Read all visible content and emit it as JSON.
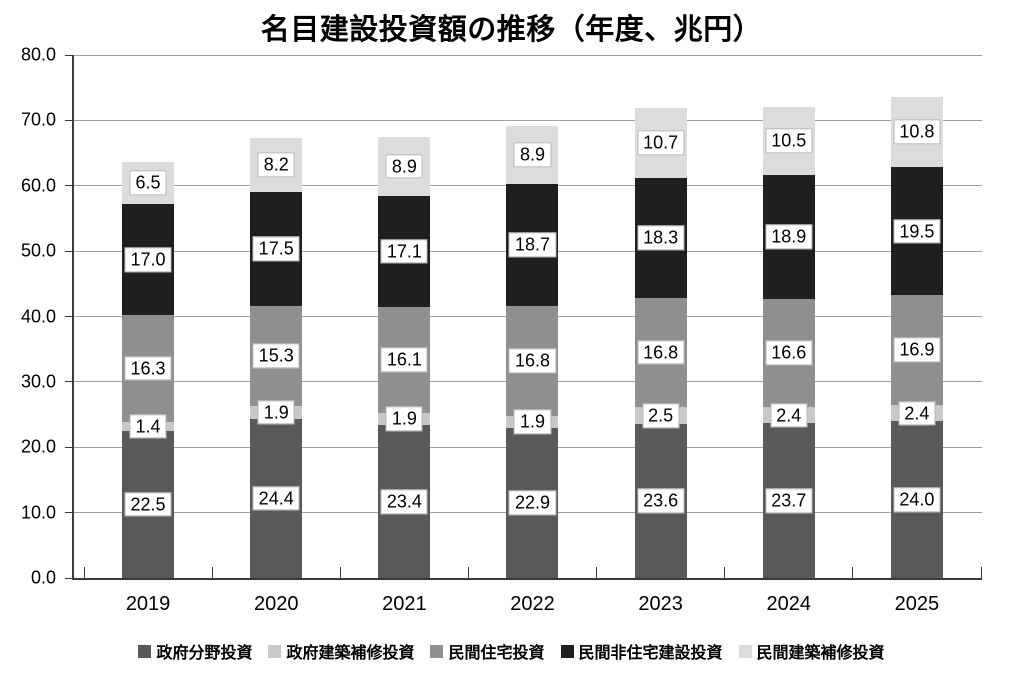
{
  "title": "名目建設投資額の推移（年度、兆円）",
  "chart_data": {
    "type": "bar",
    "stacked": true,
    "title": "名目建設投資額の推移（年度、兆円）",
    "categories": [
      "2019",
      "2020",
      "2021",
      "2022",
      "2023",
      "2024",
      "2025"
    ],
    "series": [
      {
        "name": "政府分野投資",
        "color": "#595959",
        "values": [
          22.5,
          24.4,
          23.4,
          22.9,
          23.6,
          23.7,
          24.0
        ]
      },
      {
        "name": "政府建築補修投資",
        "color": "#c9c9c9",
        "values": [
          1.4,
          1.9,
          1.9,
          1.9,
          2.5,
          2.4,
          2.4
        ]
      },
      {
        "name": "民間住宅投資",
        "color": "#8f8f8f",
        "values": [
          16.3,
          15.3,
          16.1,
          16.8,
          16.8,
          16.6,
          16.9
        ]
      },
      {
        "name": "民間非住宅建設投資",
        "color": "#1f1f1f",
        "values": [
          17.0,
          17.5,
          17.1,
          18.7,
          18.3,
          18.9,
          19.5
        ]
      },
      {
        "name": "民間建築補修投資",
        "color": "#dcdcdc",
        "values": [
          6.5,
          8.2,
          8.9,
          8.9,
          10.7,
          10.5,
          10.8
        ]
      }
    ],
    "xlabel": "",
    "ylabel": "",
    "ylim": [
      0,
      80
    ],
    "ytick_step": 10,
    "yticks": [
      "0.0",
      "10.0",
      "20.0",
      "30.0",
      "40.0",
      "50.0",
      "60.0",
      "70.0",
      "80.0"
    ],
    "grid": true,
    "legend_position": "bottom",
    "value_label_decimals": 1
  },
  "colors": {
    "background": "#ffffff",
    "gridline": "#a0a0a0",
    "axis": "#3a3a3a",
    "label_box_border": "#b5b5b5",
    "label_box_fill": "#ffffff",
    "text": "#000000"
  }
}
